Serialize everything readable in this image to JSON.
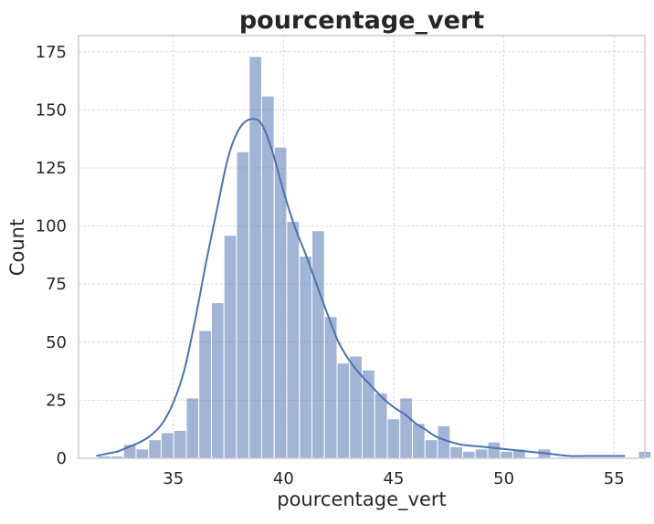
{
  "chart_data": {
    "type": "bar",
    "title": "pourcentage_vert",
    "xlabel": "pourcentage_vert",
    "ylabel": "Count",
    "xlim": [
      30.7,
      56.4
    ],
    "ylim": [
      0,
      182
    ],
    "xticks": [
      35,
      40,
      45,
      50,
      55
    ],
    "yticks": [
      0,
      25,
      50,
      75,
      100,
      125,
      150,
      175
    ],
    "grid": true,
    "bar_color": "#4c72b0",
    "line_color": "#4c72b0",
    "bins": {
      "start": 31.6,
      "width": 0.57,
      "counts": [
        1,
        1,
        6,
        4,
        8,
        11,
        12,
        26,
        55,
        67,
        96,
        132,
        173,
        156,
        134,
        102,
        87,
        98,
        61,
        41,
        44,
        38,
        28,
        17,
        26,
        15,
        8,
        14,
        5,
        3,
        4,
        7,
        3,
        4,
        0,
        4,
        0,
        0,
        0,
        0,
        0,
        0,
        0,
        3
      ]
    },
    "kde_curve": {
      "x": [
        31.5,
        32.0,
        32.5,
        33.0,
        33.5,
        34.0,
        34.5,
        35.0,
        35.5,
        36.0,
        36.5,
        37.0,
        37.5,
        38.0,
        38.5,
        39.0,
        39.5,
        40.0,
        40.5,
        41.0,
        41.5,
        42.0,
        42.5,
        43.0,
        43.5,
        44.0,
        44.5,
        45.0,
        45.5,
        46.0,
        46.5,
        47.0,
        48.0,
        49.0,
        50.0,
        51.0,
        52.0,
        53.0,
        54.0,
        55.0,
        55.5
      ],
      "y": [
        1,
        2,
        3,
        5,
        7,
        10,
        15,
        24,
        38,
        60,
        85,
        108,
        130,
        142,
        146,
        144,
        132,
        115,
        100,
        88,
        75,
        62,
        50,
        42,
        36,
        31,
        26,
        22,
        19,
        15,
        12,
        9,
        6,
        5,
        4,
        3,
        2,
        1,
        1,
        1,
        1
      ]
    }
  }
}
